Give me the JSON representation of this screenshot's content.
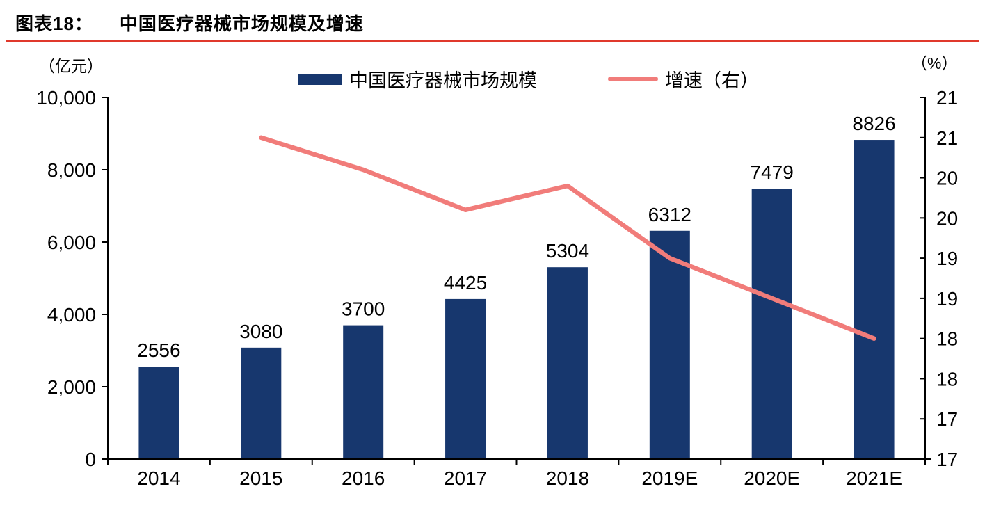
{
  "header": {
    "figure_label": "图表18：",
    "title": "中国医疗器械市场规模及增速",
    "rule_color": "#E0392C"
  },
  "axes_units": {
    "left": "（亿元）",
    "right": "（%）"
  },
  "legend": {
    "bar_label": "中国医疗器械市场规模",
    "line_label": "增速（右）"
  },
  "colors": {
    "bar": "#17376E",
    "line": "#F17C7A",
    "axis": "#000000"
  },
  "chart_data": {
    "type": "bar",
    "subtype": "bar+line-dual-axis",
    "title": "中国医疗器械市场规模及增速",
    "categories": [
      "2014",
      "2015",
      "2016",
      "2017",
      "2018",
      "2019E",
      "2020E",
      "2021E"
    ],
    "series": [
      {
        "name": "中国医疗器械市场规模",
        "type": "bar",
        "axis": "left",
        "unit": "亿元",
        "color": "#17376E",
        "values": [
          2556,
          3080,
          3700,
          4425,
          5304,
          6312,
          7479,
          8826
        ],
        "data_labels": [
          "2556",
          "3080",
          "3700",
          "4425",
          "5304",
          "6312",
          "7479",
          "8826"
        ]
      },
      {
        "name": "增速（右）",
        "type": "line",
        "axis": "right",
        "unit": "%",
        "color": "#F17C7A",
        "values": [
          null,
          20.5,
          20.1,
          19.6,
          19.9,
          19.0,
          18.5,
          18.0
        ]
      }
    ],
    "left_axis": {
      "label": "（亿元）",
      "min": 0,
      "max": 10000,
      "step": 2000,
      "tick_labels": [
        "0",
        "2,000",
        "4,000",
        "6,000",
        "8,000",
        "10,000"
      ]
    },
    "right_axis": {
      "label": "（%）",
      "min": 16.5,
      "max": 21,
      "step": 0.5,
      "tick_labels_bottom_to_top": [
        "17",
        "17",
        "18",
        "18",
        "19",
        "19",
        "20",
        "20",
        "21",
        "21"
      ]
    },
    "grid": false,
    "legend_position": "top"
  }
}
